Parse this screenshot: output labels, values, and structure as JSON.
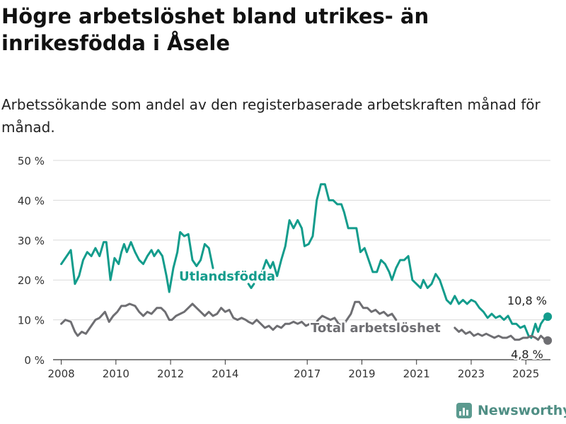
{
  "title": "Högre arbetslöshet bland utrikes- än inrikesfödda i Åsele",
  "subtitle": "Arbetssökande som andel av den registerbaserade arbetskraften månad för månad.",
  "brand": {
    "name": "Newsworthy",
    "icon": "bar-chart-icon"
  },
  "colors": {
    "foreign": "#139c8c",
    "total": "#6e6e72",
    "grid": "#dadada"
  },
  "chart_data": {
    "type": "line",
    "title": "Högre arbetslöshet bland utrikes- än inrikesfödda i Åsele",
    "subtitle": "Arbetssökande som andel av den registerbaserade arbetskraften månad för månad.",
    "xlabel": "",
    "ylabel": "",
    "xlim": [
      2007.7,
      2025.9
    ],
    "ylim": [
      0,
      50
    ],
    "grid": true,
    "y_ticks": [
      0,
      10,
      20,
      30,
      40,
      50
    ],
    "y_tick_labels": [
      "0 %",
      "10 %",
      "20 %",
      "30 %",
      "40 %",
      "50 %"
    ],
    "x_ticks": [
      2008,
      2010,
      2012,
      2014,
      2017,
      2019,
      2021,
      2023,
      2025
    ],
    "x_tick_labels": [
      "2008",
      "2010",
      "2012",
      "2014",
      "2017",
      "2019",
      "2021",
      "2023",
      "2025"
    ],
    "series": [
      {
        "name": "Utlandsfödda",
        "color": "#139c8c",
        "end_label": "10,8 %",
        "segments": [
          [
            [
              2008.0,
              24
            ],
            [
              2008.2,
              26
            ],
            [
              2008.35,
              27.5
            ],
            [
              2008.5,
              19
            ],
            [
              2008.65,
              21
            ],
            [
              2008.8,
              25
            ],
            [
              2008.95,
              27
            ],
            [
              2009.1,
              26
            ],
            [
              2009.25,
              28
            ],
            [
              2009.4,
              26
            ],
            [
              2009.55,
              29.5
            ],
            [
              2009.65,
              29.5
            ],
            [
              2009.8,
              20
            ],
            [
              2009.95,
              25.5
            ],
            [
              2010.1,
              24
            ],
            [
              2010.2,
              27
            ],
            [
              2010.3,
              29
            ],
            [
              2010.4,
              27
            ],
            [
              2010.55,
              29.5
            ],
            [
              2010.7,
              27
            ],
            [
              2010.85,
              25
            ],
            [
              2011.0,
              24
            ],
            [
              2011.15,
              26
            ],
            [
              2011.3,
              27.5
            ],
            [
              2011.4,
              26
            ],
            [
              2011.55,
              27.5
            ],
            [
              2011.7,
              26
            ],
            [
              2011.85,
              21
            ],
            [
              2011.95,
              17
            ],
            [
              2012.1,
              23
            ],
            [
              2012.25,
              27
            ],
            [
              2012.35,
              32
            ],
            [
              2012.5,
              31
            ],
            [
              2012.65,
              31.5
            ],
            [
              2012.8,
              25
            ],
            [
              2012.95,
              23.5
            ],
            [
              2013.1,
              25
            ],
            [
              2013.25,
              29
            ],
            [
              2013.4,
              28
            ],
            [
              2013.55,
              23
            ]
          ],
          [
            [
              2014.85,
              19
            ],
            [
              2014.95,
              18
            ],
            [
              2015.05,
              19
            ]
          ],
          [
            [
              2015.35,
              22
            ],
            [
              2015.5,
              25
            ],
            [
              2015.65,
              23
            ],
            [
              2015.75,
              24.5
            ],
            [
              2015.9,
              21
            ],
            [
              2016.05,
              25
            ],
            [
              2016.2,
              28.5
            ],
            [
              2016.35,
              35
            ],
            [
              2016.5,
              33
            ],
            [
              2016.65,
              35
            ],
            [
              2016.8,
              33
            ],
            [
              2016.9,
              28.5
            ],
            [
              2017.05,
              29
            ],
            [
              2017.2,
              31
            ],
            [
              2017.35,
              40
            ],
            [
              2017.5,
              44
            ],
            [
              2017.65,
              44
            ],
            [
              2017.8,
              40
            ],
            [
              2017.95,
              40
            ],
            [
              2018.1,
              39
            ],
            [
              2018.25,
              39
            ],
            [
              2018.35,
              37
            ],
            [
              2018.5,
              33
            ],
            [
              2018.65,
              33
            ],
            [
              2018.8,
              33
            ],
            [
              2018.95,
              27
            ],
            [
              2019.1,
              28
            ],
            [
              2019.25,
              25
            ],
            [
              2019.4,
              22
            ],
            [
              2019.55,
              22
            ],
            [
              2019.7,
              25
            ],
            [
              2019.85,
              24
            ],
            [
              2020.0,
              22
            ],
            [
              2020.1,
              20
            ],
            [
              2020.25,
              23
            ],
            [
              2020.4,
              25
            ],
            [
              2020.55,
              25
            ],
            [
              2020.7,
              26
            ],
            [
              2020.85,
              20
            ],
            [
              2021.0,
              19
            ],
            [
              2021.15,
              18
            ],
            [
              2021.25,
              20
            ],
            [
              2021.4,
              18
            ],
            [
              2021.55,
              19
            ],
            [
              2021.7,
              21.5
            ],
            [
              2021.85,
              20
            ],
            [
              2022.0,
              17
            ],
            [
              2022.1,
              15
            ],
            [
              2022.25,
              14
            ],
            [
              2022.4,
              16
            ],
            [
              2022.55,
              14
            ],
            [
              2022.7,
              15
            ],
            [
              2022.85,
              14
            ],
            [
              2023.0,
              15
            ],
            [
              2023.15,
              14.5
            ],
            [
              2023.3,
              13
            ],
            [
              2023.45,
              12
            ],
            [
              2023.6,
              10.5
            ],
            [
              2023.75,
              11.5
            ],
            [
              2023.9,
              10.5
            ],
            [
              2024.05,
              11
            ],
            [
              2024.2,
              10
            ],
            [
              2024.35,
              11
            ],
            [
              2024.5,
              9
            ],
            [
              2024.65,
              9
            ],
            [
              2024.8,
              8
            ],
            [
              2024.95,
              8.5
            ],
            [
              2025.1,
              6
            ],
            [
              2025.2,
              5.5
            ],
            [
              2025.35,
              9
            ],
            [
              2025.45,
              7
            ],
            [
              2025.55,
              9
            ],
            [
              2025.65,
              10
            ],
            [
              2025.8,
              10.8
            ]
          ]
        ]
      },
      {
        "name": "Total arbetslöshet",
        "color": "#6e6e72",
        "end_label": "4,8 %",
        "segments": [
          [
            [
              2008.0,
              9
            ],
            [
              2008.15,
              10
            ],
            [
              2008.35,
              9.5
            ],
            [
              2008.5,
              7
            ],
            [
              2008.6,
              6
            ],
            [
              2008.75,
              7
            ],
            [
              2008.9,
              6.5
            ],
            [
              2009.05,
              8
            ],
            [
              2009.25,
              10
            ],
            [
              2009.4,
              10.5
            ],
            [
              2009.6,
              12
            ],
            [
              2009.75,
              9.5
            ],
            [
              2009.9,
              11
            ],
            [
              2010.05,
              12
            ],
            [
              2010.2,
              13.5
            ],
            [
              2010.35,
              13.5
            ],
            [
              2010.5,
              14
            ],
            [
              2010.7,
              13.5
            ],
            [
              2010.85,
              12
            ],
            [
              2011.0,
              11
            ],
            [
              2011.15,
              12
            ],
            [
              2011.3,
              11.5
            ],
            [
              2011.5,
              13
            ],
            [
              2011.65,
              13
            ],
            [
              2011.8,
              12
            ],
            [
              2011.95,
              10
            ],
            [
              2012.05,
              10
            ],
            [
              2012.2,
              11
            ],
            [
              2012.35,
              11.5
            ],
            [
              2012.5,
              12
            ],
            [
              2012.65,
              13
            ],
            [
              2012.8,
              14
            ],
            [
              2012.95,
              13
            ],
            [
              2013.1,
              12
            ],
            [
              2013.25,
              11
            ],
            [
              2013.4,
              12
            ],
            [
              2013.55,
              11
            ],
            [
              2013.7,
              11.5
            ],
            [
              2013.85,
              13
            ],
            [
              2014.0,
              12
            ],
            [
              2014.15,
              12.5
            ],
            [
              2014.3,
              10.5
            ],
            [
              2014.45,
              10
            ],
            [
              2014.6,
              10.5
            ],
            [
              2014.75,
              10
            ],
            [
              2014.85,
              9.5
            ],
            [
              2015.0,
              9
            ],
            [
              2015.15,
              10
            ],
            [
              2015.3,
              9
            ],
            [
              2015.45,
              8
            ],
            [
              2015.6,
              8.5
            ],
            [
              2015.75,
              7.5
            ],
            [
              2015.9,
              8.5
            ],
            [
              2016.05,
              8
            ],
            [
              2016.2,
              9
            ],
            [
              2016.35,
              9
            ],
            [
              2016.5,
              9.5
            ],
            [
              2016.65,
              9
            ],
            [
              2016.8,
              9.5
            ],
            [
              2016.95,
              8.5
            ],
            [
              2017.1,
              9
            ],
            [
              2017.25,
              8.5
            ],
            [
              2017.4,
              10
            ],
            [
              2017.55,
              11
            ],
            [
              2017.7,
              10.5
            ],
            [
              2017.85,
              10
            ],
            [
              2018.0,
              10.5
            ],
            [
              2018.15,
              9
            ],
            [
              2018.3,
              8.5
            ],
            [
              2018.45,
              10
            ],
            [
              2018.6,
              11.5
            ],
            [
              2018.75,
              14.5
            ],
            [
              2018.9,
              14.5
            ],
            [
              2019.05,
              13
            ],
            [
              2019.2,
              13
            ],
            [
              2019.35,
              12
            ],
            [
              2019.5,
              12.5
            ],
            [
              2019.65,
              11.5
            ],
            [
              2019.8,
              12
            ],
            [
              2019.95,
              11
            ],
            [
              2020.1,
              11.5
            ],
            [
              2020.25,
              10
            ]
          ],
          [
            [
              2022.4,
              8
            ],
            [
              2022.55,
              7
            ],
            [
              2022.65,
              7.5
            ],
            [
              2022.8,
              6.5
            ],
            [
              2022.95,
              7
            ],
            [
              2023.1,
              6
            ],
            [
              2023.25,
              6.5
            ],
            [
              2023.4,
              6
            ],
            [
              2023.55,
              6.5
            ],
            [
              2023.7,
              6
            ],
            [
              2023.85,
              5.5
            ],
            [
              2024.0,
              6
            ],
            [
              2024.15,
              5.5
            ],
            [
              2024.3,
              5.5
            ],
            [
              2024.45,
              6
            ],
            [
              2024.6,
              5
            ],
            [
              2024.75,
              5
            ],
            [
              2024.9,
              5.5
            ],
            [
              2025.05,
              5.5
            ],
            [
              2025.2,
              6
            ],
            [
              2025.35,
              5.5
            ],
            [
              2025.45,
              5
            ],
            [
              2025.55,
              6
            ],
            [
              2025.7,
              5
            ],
            [
              2025.8,
              4.8
            ]
          ]
        ]
      }
    ]
  }
}
